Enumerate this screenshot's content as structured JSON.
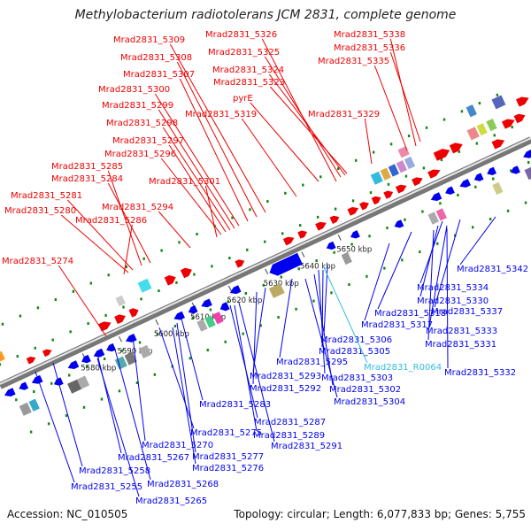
{
  "title": "Methylobacterium radiotolerans JCM 2831, complete genome",
  "footer": {
    "accession": "Accession: NC_010505",
    "summary": "Topology: circular; Length: 6,077,833 bp; Genes: 5,755"
  },
  "colors": {
    "forward": "#ee0000",
    "reverse": "#0000ee",
    "rna": "#33bbdd",
    "backbone": "#999999",
    "tick": "#118811"
  },
  "ticks": [
    {
      "label": "5580 kbp",
      "kbp": 5580
    },
    {
      "label": "5590 kbp",
      "kbp": 5590
    },
    {
      "label": "5600 kbp",
      "kbp": 5600
    },
    {
      "label": "5610 kbp",
      "kbp": 5610
    },
    {
      "label": "5620 kbp",
      "kbp": 5620
    },
    {
      "label": "5630 kbp",
      "kbp": 5630
    },
    {
      "label": "5640 kbp",
      "kbp": 5640
    },
    {
      "label": "5650 kbp",
      "kbp": 5650
    }
  ],
  "labels_top": [
    {
      "text": "Mrad2831_5338",
      "strand": "forward"
    },
    {
      "text": "Mrad2831_5336",
      "strand": "forward"
    },
    {
      "text": "Mrad2831_5335",
      "strand": "forward"
    },
    {
      "text": "Mrad2831_5329",
      "strand": "forward"
    },
    {
      "text": "Mrad2831_5326",
      "strand": "forward"
    },
    {
      "text": "Mrad2831_5325",
      "strand": "forward"
    },
    {
      "text": "Mrad2831_5324",
      "strand": "forward"
    },
    {
      "text": "Mrad2831_5323",
      "strand": "forward"
    },
    {
      "text": "pyrE",
      "strand": "forward"
    },
    {
      "text": "Mrad2831_5319",
      "strand": "forward"
    },
    {
      "text": "Mrad2831_5309",
      "strand": "forward"
    },
    {
      "text": "Mrad2831_5308",
      "strand": "forward"
    },
    {
      "text": "Mrad2831_5307",
      "strand": "forward"
    },
    {
      "text": "Mrad2831_5300",
      "strand": "forward"
    },
    {
      "text": "Mrad2831_5299",
      "strand": "forward"
    },
    {
      "text": "Mrad2831_5298",
      "strand": "forward"
    },
    {
      "text": "Mrad2831_5297",
      "strand": "forward"
    },
    {
      "text": "Mrad2831_5296",
      "strand": "forward"
    },
    {
      "text": "Mrad2831_5301",
      "strand": "forward"
    },
    {
      "text": "Mrad2831_5285",
      "strand": "forward"
    },
    {
      "text": "Mrad2831_5284",
      "strand": "forward"
    },
    {
      "text": "Mrad2831_5281",
      "strand": "forward"
    },
    {
      "text": "Mrad2831_5280",
      "strand": "forward"
    },
    {
      "text": "Mrad2831_5294",
      "strand": "forward"
    },
    {
      "text": "Mrad2831_5286",
      "strand": "forward"
    },
    {
      "text": "Mrad2831_5274",
      "strand": "forward"
    }
  ],
  "labels_bottom": [
    {
      "text": "Mrad2831_5342",
      "strand": "reverse"
    },
    {
      "text": "Mrad2831_5334",
      "strand": "reverse"
    },
    {
      "text": "Mrad2831_5330",
      "strand": "reverse"
    },
    {
      "text": "Mrad2831_5318",
      "strand": "reverse"
    },
    {
      "text": "Mrad2831_5337",
      "strand": "reverse"
    },
    {
      "text": "Mrad2831_5317",
      "strand": "reverse"
    },
    {
      "text": "Mrad2831_5333",
      "strand": "reverse"
    },
    {
      "text": "Mrad2831_5306",
      "strand": "reverse"
    },
    {
      "text": "Mrad2831_5331",
      "strand": "reverse"
    },
    {
      "text": "Mrad2831_5305",
      "strand": "reverse"
    },
    {
      "text": "Mrad2831_5295",
      "strand": "reverse"
    },
    {
      "text": "Mrad2831_R0064",
      "strand": "rna"
    },
    {
      "text": "Mrad2831_5332",
      "strand": "reverse"
    },
    {
      "text": "Mrad2831_5293",
      "strand": "reverse"
    },
    {
      "text": "Mrad2831_5303",
      "strand": "reverse"
    },
    {
      "text": "Mrad2831_5292",
      "strand": "reverse"
    },
    {
      "text": "Mrad2831_5302",
      "strand": "reverse"
    },
    {
      "text": "Mrad2831_5304",
      "strand": "reverse"
    },
    {
      "text": "Mrad2831_5283",
      "strand": "reverse"
    },
    {
      "text": "Mrad2831_5287",
      "strand": "reverse"
    },
    {
      "text": "Mrad2831_5275",
      "strand": "reverse"
    },
    {
      "text": "Mrad2831_5289",
      "strand": "reverse"
    },
    {
      "text": "Mrad2831_5291",
      "strand": "reverse"
    },
    {
      "text": "Mrad2831_5270",
      "strand": "reverse"
    },
    {
      "text": "Mrad2831_5267",
      "strand": "reverse"
    },
    {
      "text": "Mrad2831_5277",
      "strand": "reverse"
    },
    {
      "text": "Mrad2831_5276",
      "strand": "reverse"
    },
    {
      "text": "Mrad2831_5258",
      "strand": "reverse"
    },
    {
      "text": "Mrad2831_5268",
      "strand": "reverse"
    },
    {
      "text": "Mrad2831_5255",
      "strand": "reverse"
    },
    {
      "text": "Mrad2831_5265",
      "strand": "reverse"
    }
  ]
}
